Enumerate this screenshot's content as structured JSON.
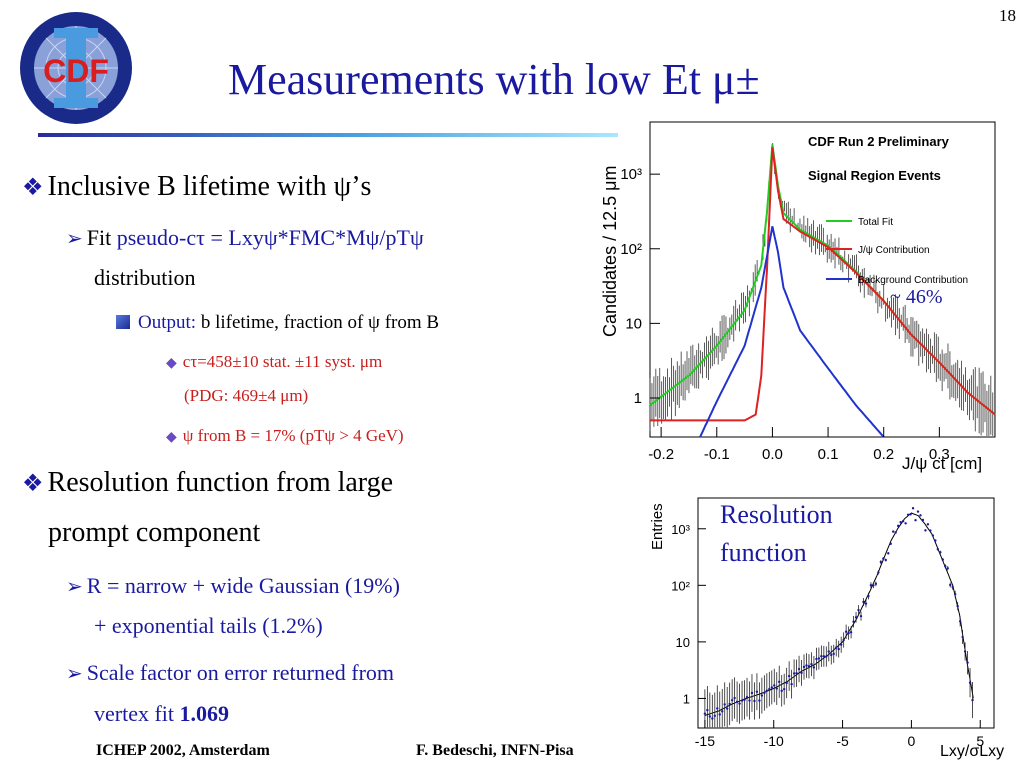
{
  "slide": {
    "page_number": "18",
    "title": "Measurements with low Et μ±",
    "logo_text": "CDF"
  },
  "bullets": {
    "b1": "Inclusive B lifetime with ψ’s",
    "b1_fit_label": "Fit",
    "b1_fit_formula": "pseudo-cτ = Lxyψ*FMC*Mψ/pTψ",
    "b1_fit_tail": "distribution",
    "b1_output_label": "Output:",
    "b1_output_text": "b lifetime, fraction of ψ from B",
    "b1_ctau": "cτ=458±10 stat. ±11 syst. μm",
    "b1_pdg": "(PDG: 469±4 μm)",
    "b1_frac": "ψ from B = 17% (pTψ > 4 GeV)",
    "b2_line1": "Resolution function from large",
    "b2_line2": "prompt component",
    "b2_r_line1": "R = narrow + wide Gaussian (19%)",
    "b2_r_line2": "+ exponential tails (1.2%)",
    "b2_scale_line1": "Scale  factor on error returned from",
    "b2_scale_line2": "vertex fit",
    "b2_scale_value": "1.069"
  },
  "annotations": {
    "pct": "~ 46%",
    "resolution_line1": "Resolution",
    "resolution_line2": "function"
  },
  "footer": {
    "left": "ICHEP 2002, Amsterdam",
    "center": "F. Bedeschi, INFN-Pisa"
  },
  "chart_data": [
    {
      "type": "line",
      "title": "CDF Run 2 Preliminary",
      "subtitle": "Signal Region Events",
      "xlabel": "J/ψ ct [cm]",
      "ylabel": "Candidates / 12.5 μm",
      "xlim": [
        -0.22,
        0.4
      ],
      "ylim": [
        0.3,
        5000
      ],
      "yscale": "log",
      "xticks": [
        "-0.2",
        "-0.1",
        "0.0",
        "0.1",
        "0.2",
        "0.3"
      ],
      "yticks": [
        "1",
        "10",
        "10²",
        "10³"
      ],
      "legend_position": "right",
      "colors": {
        "total": "#22cc22",
        "jpsi": "#dd2222",
        "background": "#2233cc"
      },
      "series": [
        {
          "name": "Total Fit",
          "x": [
            -0.22,
            -0.15,
            -0.1,
            -0.05,
            -0.02,
            -0.01,
            0.0,
            0.01,
            0.02,
            0.05,
            0.1,
            0.15,
            0.2,
            0.25,
            0.3,
            0.35,
            0.4
          ],
          "y": [
            0.8,
            2,
            5,
            15,
            60,
            300,
            2500,
            700,
            300,
            180,
            110,
            50,
            20,
            7,
            3,
            1.2,
            0.6
          ]
        },
        {
          "name": "J/ψ Contribution",
          "x": [
            -0.22,
            -0.1,
            -0.05,
            -0.03,
            -0.02,
            -0.01,
            0.0,
            0.01,
            0.02,
            0.05,
            0.1,
            0.15,
            0.2,
            0.25,
            0.3,
            0.35,
            0.4
          ],
          "y": [
            0.5,
            0.5,
            0.5,
            0.6,
            2,
            50,
            2300,
            600,
            250,
            170,
            105,
            48,
            20,
            7,
            3,
            1.2,
            0.6
          ]
        },
        {
          "name": "Background Contribution",
          "x": [
            -0.13,
            -0.1,
            -0.05,
            -0.02,
            0.0,
            0.01,
            0.02,
            0.05,
            0.1,
            0.15,
            0.2
          ],
          "y": [
            0.3,
            0.9,
            5,
            30,
            200,
            90,
            30,
            8,
            2.5,
            0.8,
            0.3
          ]
        }
      ]
    },
    {
      "type": "scatter",
      "xlabel": "Lxy/σLxy",
      "ylabel": "Entries",
      "xlim": [
        -15.5,
        6
      ],
      "ylim": [
        0.3,
        3500
      ],
      "yscale": "log",
      "xticks": [
        "-15",
        "-10",
        "-5",
        "0",
        "5"
      ],
      "yticks": [
        "1",
        "10",
        "10²",
        "10³"
      ],
      "series": [
        {
          "name": "",
          "x": [
            -15,
            -14,
            -13,
            -12,
            -11,
            -10,
            -9,
            -8,
            -7,
            -6,
            -5,
            -4,
            -3,
            -2.5,
            -2,
            -1.5,
            -1,
            -0.5,
            0,
            0.5,
            1,
            1.5,
            2,
            2.5,
            3,
            3.5,
            4,
            4.5
          ],
          "y": [
            0.5,
            0.6,
            0.8,
            1,
            1.2,
            1.5,
            2,
            3,
            4,
            6,
            10,
            25,
            80,
            150,
            300,
            600,
            1000,
            1500,
            1900,
            1700,
            1200,
            800,
            400,
            200,
            100,
            30,
            5,
            1
          ]
        }
      ]
    }
  ]
}
